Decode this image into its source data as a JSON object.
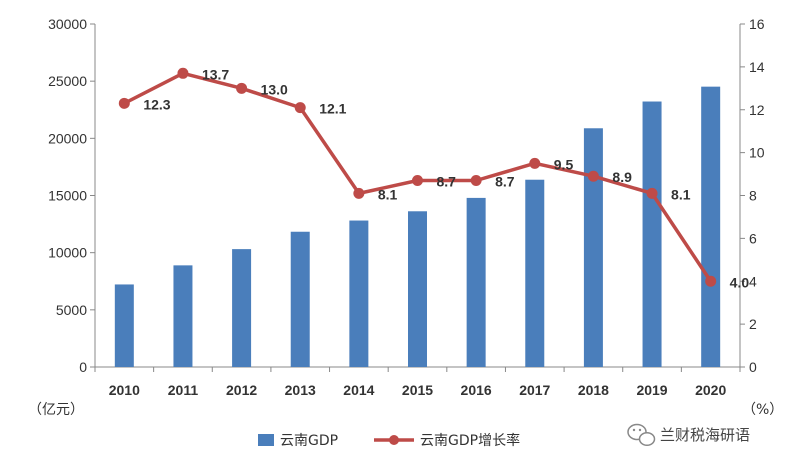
{
  "chart_data": {
    "type": "bar+line",
    "categories": [
      "2010",
      "2011",
      "2012",
      "2013",
      "2014",
      "2015",
      "2016",
      "2017",
      "2018",
      "2019",
      "2020"
    ],
    "series": [
      {
        "name": "云南GDP",
        "type": "bar",
        "axis": "left",
        "values": [
          7220,
          8890,
          10310,
          11830,
          12810,
          13620,
          14790,
          16380,
          20880,
          23220,
          24520
        ]
      },
      {
        "name": "云南GDP增长率",
        "type": "line",
        "axis": "right",
        "values": [
          12.3,
          13.7,
          13.0,
          12.1,
          8.1,
          8.7,
          8.7,
          9.5,
          8.9,
          8.1,
          4.0
        ],
        "data_labels": [
          "12.3",
          "13.7",
          "13.0",
          "12.1",
          "8.1",
          "8.7",
          "8.7",
          "9.5",
          "8.9",
          "8.1",
          "4.0"
        ]
      }
    ],
    "y_left": {
      "label": "（亿元）",
      "ylim": [
        0,
        30000
      ],
      "ticks": [
        "0",
        "5000",
        "10000",
        "15000",
        "20000",
        "25000",
        "30000"
      ]
    },
    "y_right": {
      "label": "（%）",
      "ylim": [
        0,
        16
      ],
      "ticks": [
        "0",
        "2",
        "4",
        "6",
        "8",
        "10",
        "12",
        "14",
        "16"
      ]
    },
    "grid": false,
    "legend": "bottom-center",
    "colors": {
      "bar": "#4a7ebb",
      "line": "#be4b48",
      "axis": "#888888"
    }
  },
  "watermark": {
    "text": "兰财税海研语"
  }
}
